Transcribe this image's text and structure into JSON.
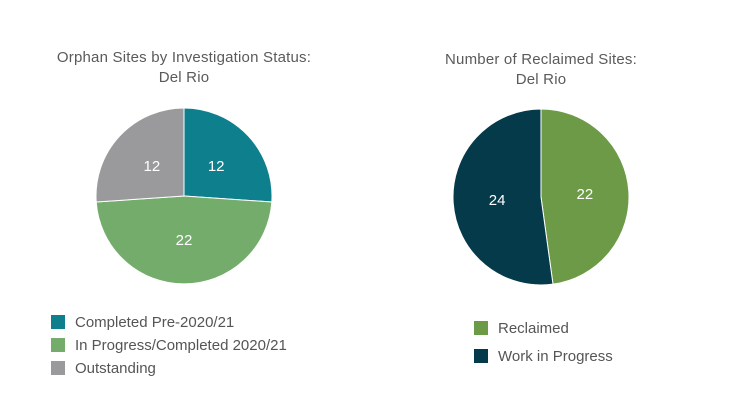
{
  "chart_data": [
    {
      "type": "pie",
      "title_lines": [
        "Orphan Sites by Investigation Status:",
        "Del Rio"
      ],
      "slices": [
        {
          "label": "Completed Pre-2020/21",
          "value": 12,
          "color": "#0e7f8c"
        },
        {
          "label": "In Progress/Completed 2020/21",
          "value": 22,
          "color": "#74ad6b"
        },
        {
          "label": "Outstanding",
          "value": 12,
          "color": "#9a9a9c"
        }
      ],
      "legend_position": "bottom-left"
    },
    {
      "type": "pie",
      "title_lines": [
        "Number of Reclaimed Sites:",
        "Del Rio"
      ],
      "slices": [
        {
          "label": "Reclaimed",
          "value": 22,
          "color": "#6c9a46"
        },
        {
          "label": "Work in Progress",
          "value": 24,
          "color": "#053a4a"
        }
      ],
      "legend_position": "bottom"
    }
  ]
}
